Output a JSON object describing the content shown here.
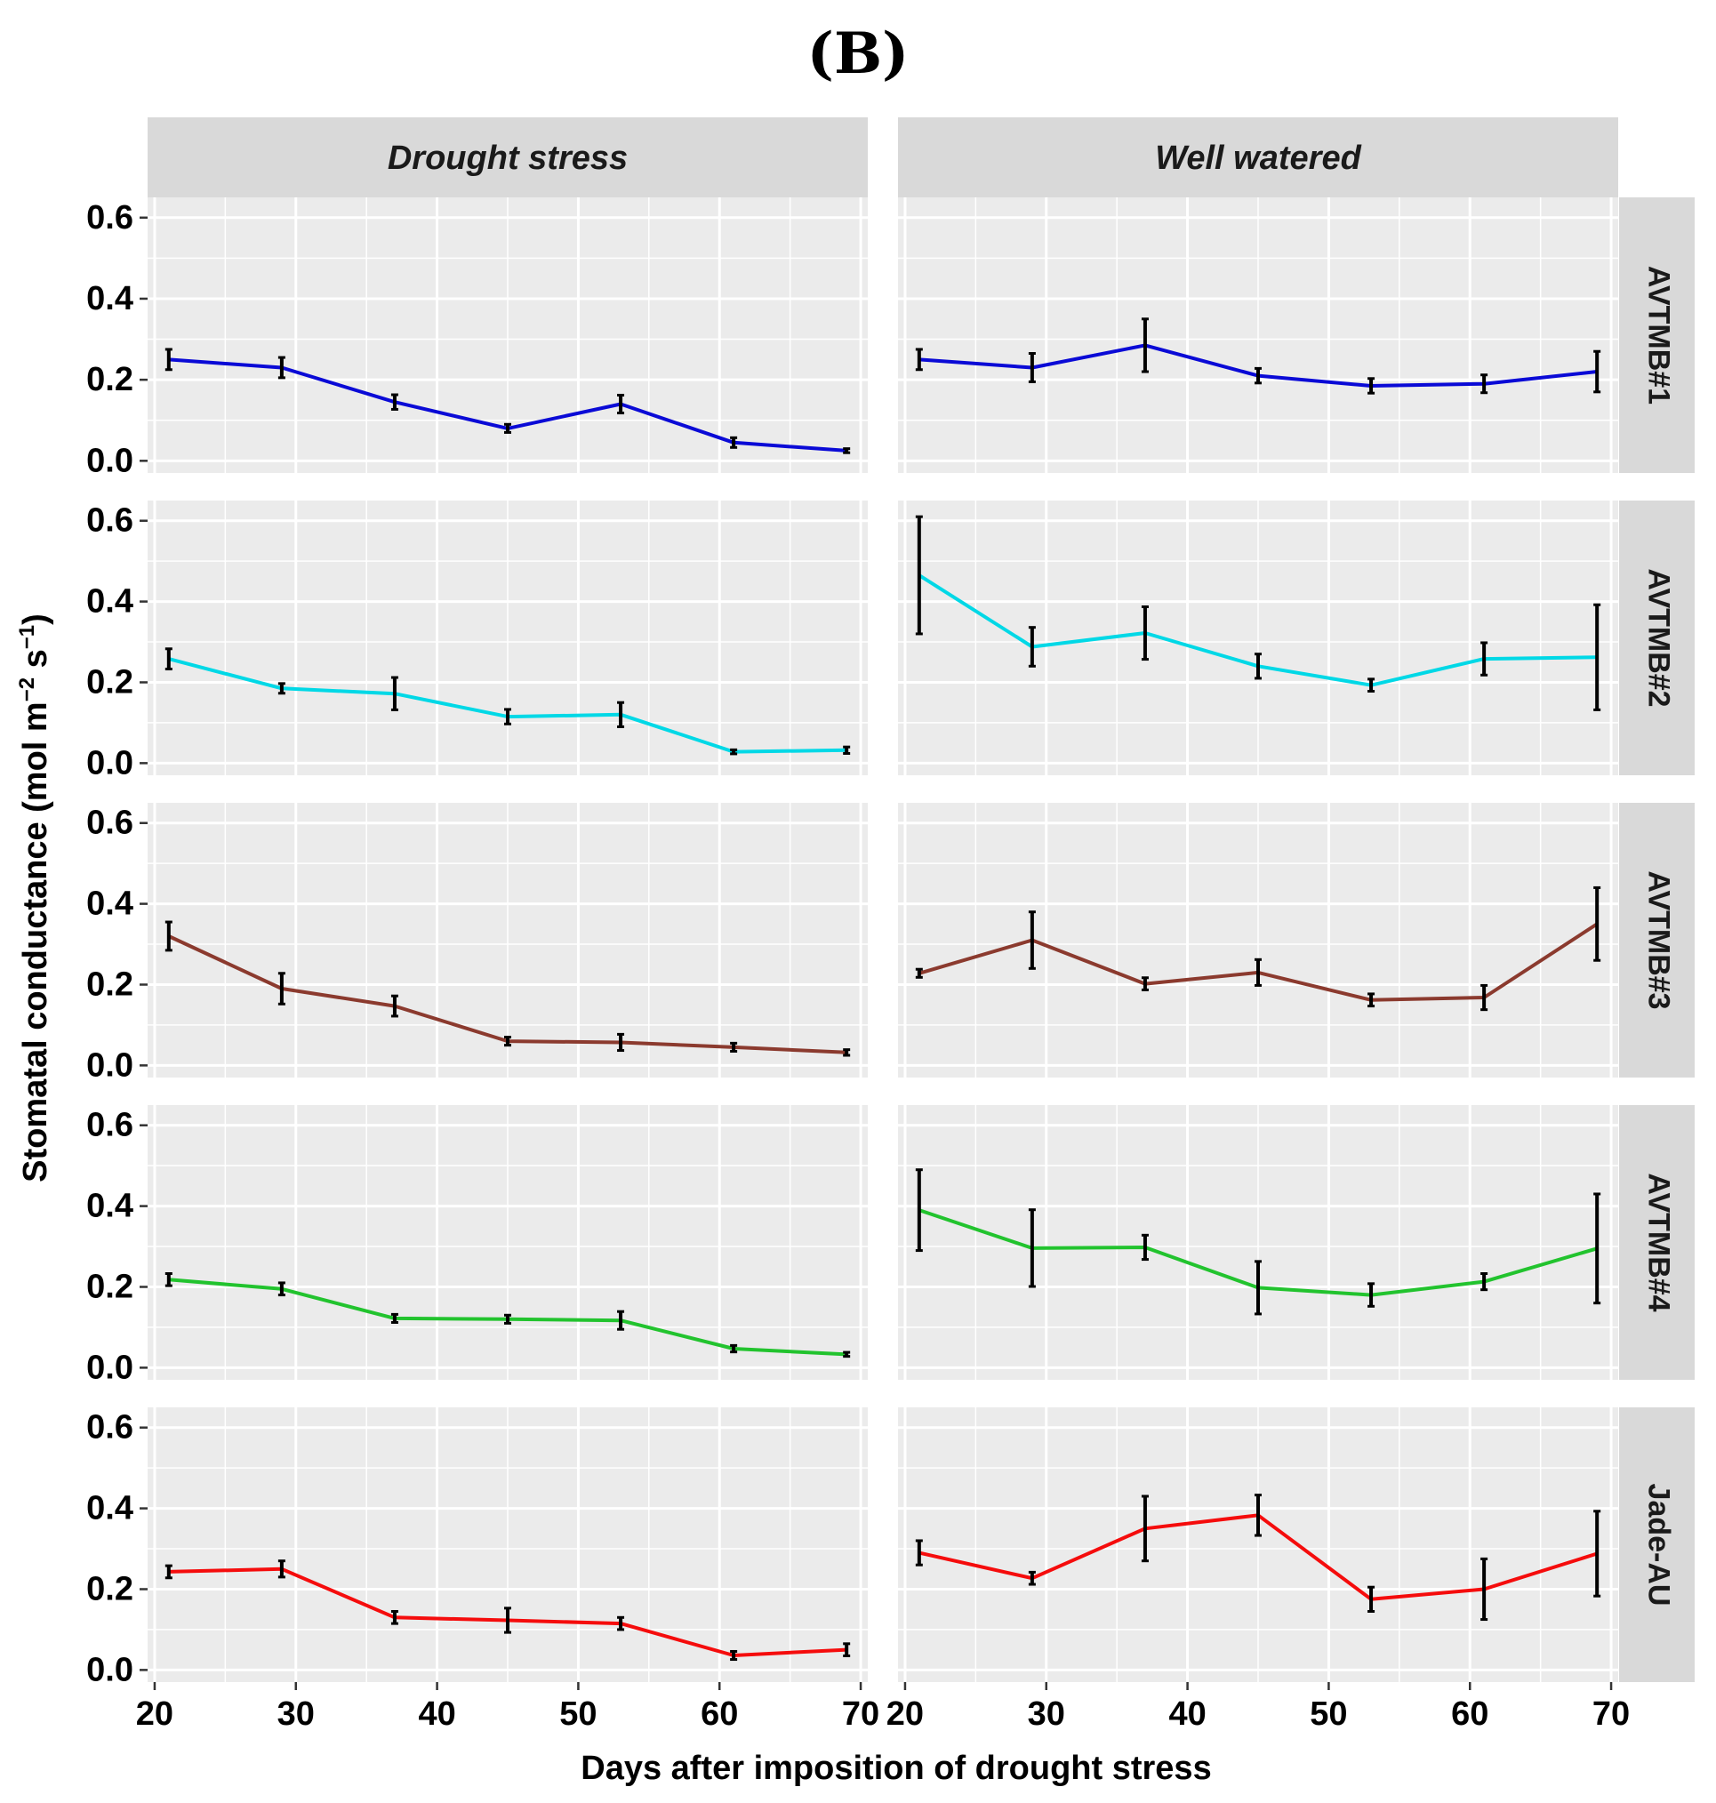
{
  "chart_data": {
    "type": "line",
    "panel_label": "(B)",
    "xlabel": "Days after imposition of drought stress",
    "ylabel_main": "Stomatal conductance (mol m",
    "ylabel_sup1": "−2",
    "ylabel_mid": " s",
    "ylabel_sup2": "−1",
    "ylabel_end": ")",
    "columns": [
      "Drought stress",
      "Well watered"
    ],
    "rows": [
      "AVTMB#1",
      "AVTMB#2",
      "AVTMB#3",
      "AVTMB#4",
      "Jade-AU"
    ],
    "row_colors": [
      "#0a0ad6",
      "#00d8e6",
      "#8b3a2e",
      "#22c32e",
      "#f50c0c"
    ],
    "x": [
      21,
      29,
      37,
      45,
      53,
      61,
      69
    ],
    "xticks": [
      20,
      30,
      40,
      50,
      60,
      70
    ],
    "xlim": [
      19.5,
      70.5
    ],
    "yticks": [
      0.0,
      0.2,
      0.4,
      0.6
    ],
    "ytick_labels": [
      "0.0",
      "0.2",
      "0.4",
      "0.6"
    ],
    "ylim": [
      -0.03,
      0.65
    ],
    "grid": true,
    "series": [
      {
        "row": "AVTMB#1",
        "column": "Drought stress",
        "values": [
          0.25,
          0.23,
          0.145,
          0.08,
          0.14,
          0.045,
          0.025
        ],
        "errors": [
          0.025,
          0.025,
          0.018,
          0.01,
          0.022,
          0.012,
          0.005
        ]
      },
      {
        "row": "AVTMB#1",
        "column": "Well watered",
        "values": [
          0.25,
          0.23,
          0.285,
          0.21,
          0.185,
          0.19,
          0.22
        ],
        "errors": [
          0.025,
          0.035,
          0.065,
          0.018,
          0.018,
          0.022,
          0.05
        ]
      },
      {
        "row": "AVTMB#2",
        "column": "Drought stress",
        "values": [
          0.258,
          0.185,
          0.172,
          0.115,
          0.12,
          0.028,
          0.032
        ],
        "errors": [
          0.025,
          0.012,
          0.04,
          0.018,
          0.03,
          0.005,
          0.008
        ]
      },
      {
        "row": "AVTMB#2",
        "column": "Well watered",
        "values": [
          0.465,
          0.288,
          0.322,
          0.24,
          0.193,
          0.258,
          0.262
        ],
        "errors": [
          0.145,
          0.048,
          0.065,
          0.03,
          0.015,
          0.04,
          0.13
        ]
      },
      {
        "row": "AVTMB#3",
        "column": "Drought stress",
        "values": [
          0.32,
          0.19,
          0.147,
          0.06,
          0.057,
          0.045,
          0.032
        ],
        "errors": [
          0.035,
          0.038,
          0.025,
          0.01,
          0.02,
          0.01,
          0.007
        ]
      },
      {
        "row": "AVTMB#3",
        "column": "Well watered",
        "values": [
          0.228,
          0.31,
          0.202,
          0.23,
          0.162,
          0.168,
          0.35
        ],
        "errors": [
          0.01,
          0.07,
          0.015,
          0.032,
          0.015,
          0.03,
          0.09
        ]
      },
      {
        "row": "AVTMB#4",
        "column": "Drought stress",
        "values": [
          0.218,
          0.195,
          0.122,
          0.12,
          0.117,
          0.047,
          0.033
        ],
        "errors": [
          0.015,
          0.015,
          0.01,
          0.01,
          0.022,
          0.008,
          0.005
        ]
      },
      {
        "row": "AVTMB#4",
        "column": "Well watered",
        "values": [
          0.39,
          0.296,
          0.298,
          0.198,
          0.18,
          0.213,
          0.295
        ],
        "errors": [
          0.1,
          0.095,
          0.03,
          0.065,
          0.028,
          0.02,
          0.135
        ]
      },
      {
        "row": "Jade-AU",
        "column": "Drought stress",
        "values": [
          0.243,
          0.25,
          0.13,
          0.123,
          0.115,
          0.036,
          0.05
        ],
        "errors": [
          0.015,
          0.02,
          0.015,
          0.03,
          0.015,
          0.01,
          0.015
        ]
      },
      {
        "row": "Jade-AU",
        "column": "Well watered",
        "values": [
          0.29,
          0.227,
          0.35,
          0.383,
          0.175,
          0.2,
          0.288
        ],
        "errors": [
          0.03,
          0.015,
          0.08,
          0.05,
          0.03,
          0.075,
          0.105
        ]
      }
    ]
  }
}
